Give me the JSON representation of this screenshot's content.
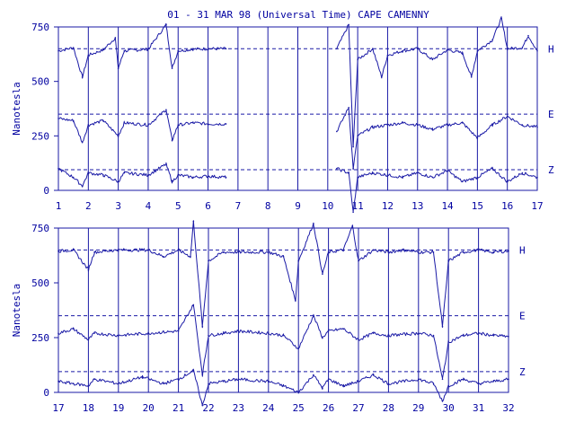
{
  "chart_data": {
    "type": "line",
    "title": "01 - 31 MAR 98 (Universal Time) CAPE CAMENNY",
    "ylabel": "Nanotesla",
    "line_color": "#1a1aa6",
    "panels": [
      {
        "x_start": 1,
        "x_end": 17,
        "x_ticks": [
          1,
          2,
          3,
          4,
          5,
          6,
          7,
          8,
          9,
          10,
          11,
          12,
          13,
          14,
          15,
          16,
          17
        ],
        "ylim": [
          0,
          750
        ],
        "y_ticks": [
          0,
          250,
          500,
          750
        ],
        "data_gaps": [
          [
            6.6,
            10.3
          ]
        ],
        "components": [
          {
            "name": "H",
            "baseline": 650,
            "values": [
              [
                1,
                640
              ],
              [
                1.5,
                655
              ],
              [
                1.8,
                520
              ],
              [
                2,
                620
              ],
              [
                2.5,
                645
              ],
              [
                2.9,
                700
              ],
              [
                3,
                560
              ],
              [
                3.2,
                640
              ],
              [
                4,
                648
              ],
              [
                4.6,
                760
              ],
              [
                4.8,
                560
              ],
              [
                5,
                640
              ],
              [
                5.5,
                648
              ],
              [
                6,
                650
              ],
              [
                6.6,
                650
              ],
              [
                10.3,
                650
              ],
              [
                10.7,
                760
              ],
              [
                10.85,
                200
              ],
              [
                11,
                600
              ],
              [
                11.5,
                650
              ],
              [
                11.8,
                520
              ],
              [
                12,
                620
              ],
              [
                12.5,
                640
              ],
              [
                13,
                650
              ],
              [
                13.5,
                600
              ],
              [
                14,
                645
              ],
              [
                14.5,
                630
              ],
              [
                14.8,
                520
              ],
              [
                15,
                640
              ],
              [
                15.5,
                690
              ],
              [
                15.8,
                790
              ],
              [
                16,
                650
              ],
              [
                16.5,
                655
              ],
              [
                16.7,
                710
              ],
              [
                17,
                640
              ]
            ]
          },
          {
            "name": "E",
            "baseline": 350,
            "values": [
              [
                1,
                330
              ],
              [
                1.5,
                320
              ],
              [
                1.8,
                220
              ],
              [
                2,
                300
              ],
              [
                2.5,
                320
              ],
              [
                3,
                250
              ],
              [
                3.2,
                310
              ],
              [
                4,
                300
              ],
              [
                4.6,
                370
              ],
              [
                4.8,
                230
              ],
              [
                5,
                300
              ],
              [
                5.5,
                310
              ],
              [
                6,
                305
              ],
              [
                6.6,
                305
              ],
              [
                10.3,
                270
              ],
              [
                10.7,
                380
              ],
              [
                10.85,
                100
              ],
              [
                11,
                250
              ],
              [
                11.5,
                290
              ],
              [
                12,
                300
              ],
              [
                12.5,
                310
              ],
              [
                13,
                300
              ],
              [
                13.5,
                280
              ],
              [
                14,
                300
              ],
              [
                14.5,
                310
              ],
              [
                15,
                240
              ],
              [
                15.5,
                300
              ],
              [
                16,
                340
              ],
              [
                16.5,
                300
              ],
              [
                17,
                290
              ]
            ]
          },
          {
            "name": "Z",
            "baseline": 95,
            "values": [
              [
                1,
                100
              ],
              [
                1.5,
                60
              ],
              [
                1.8,
                20
              ],
              [
                2,
                80
              ],
              [
                2.5,
                70
              ],
              [
                3,
                40
              ],
              [
                3.2,
                80
              ],
              [
                4,
                70
              ],
              [
                4.6,
                120
              ],
              [
                4.8,
                40
              ],
              [
                5,
                70
              ],
              [
                5.5,
                60
              ],
              [
                6,
                65
              ],
              [
                6.6,
                60
              ],
              [
                10.3,
                100
              ],
              [
                10.7,
                80
              ],
              [
                10.85,
                -100
              ],
              [
                11,
                60
              ],
              [
                11.5,
                80
              ],
              [
                12,
                70
              ],
              [
                12.5,
                60
              ],
              [
                13,
                80
              ],
              [
                13.5,
                60
              ],
              [
                14,
                90
              ],
              [
                14.5,
                40
              ],
              [
                15,
                60
              ],
              [
                15.5,
                100
              ],
              [
                16,
                40
              ],
              [
                16.5,
                80
              ],
              [
                17,
                60
              ]
            ]
          }
        ]
      },
      {
        "x_start": 17,
        "x_end": 32,
        "x_ticks": [
          17,
          18,
          19,
          20,
          21,
          22,
          23,
          24,
          25,
          26,
          27,
          28,
          29,
          30,
          31,
          32
        ],
        "ylim": [
          0,
          750
        ],
        "y_ticks": [
          0,
          250,
          500,
          750
        ],
        "data_gaps": [],
        "components": [
          {
            "name": "H",
            "baseline": 650,
            "values": [
              [
                17,
                645
              ],
              [
                17.5,
                650
              ],
              [
                18,
                560
              ],
              [
                18.2,
                640
              ],
              [
                19,
                650
              ],
              [
                20,
                650
              ],
              [
                20.5,
                620
              ],
              [
                21,
                650
              ],
              [
                21.4,
                620
              ],
              [
                21.5,
                780
              ],
              [
                21.8,
                300
              ],
              [
                22,
                600
              ],
              [
                22.5,
                640
              ],
              [
                23,
                640
              ],
              [
                24,
                640
              ],
              [
                24.5,
                620
              ],
              [
                24.9,
                420
              ],
              [
                25,
                600
              ],
              [
                25.5,
                770
              ],
              [
                25.8,
                540
              ],
              [
                26,
                640
              ],
              [
                26.5,
                650
              ],
              [
                26.8,
                760
              ],
              [
                27,
                600
              ],
              [
                27.5,
                650
              ],
              [
                28,
                640
              ],
              [
                28.5,
                650
              ],
              [
                29,
                640
              ],
              [
                29.5,
                640
              ],
              [
                29.8,
                300
              ],
              [
                30,
                600
              ],
              [
                30.5,
                640
              ],
              [
                31,
                650
              ],
              [
                31.5,
                640
              ],
              [
                32,
                645
              ]
            ]
          },
          {
            "name": "E",
            "baseline": 350,
            "values": [
              [
                17,
                270
              ],
              [
                17.5,
                290
              ],
              [
                18,
                240
              ],
              [
                18.2,
                270
              ],
              [
                19,
                260
              ],
              [
                20,
                270
              ],
              [
                21,
                280
              ],
              [
                21.5,
                400
              ],
              [
                21.8,
                80
              ],
              [
                22,
                260
              ],
              [
                22.5,
                270
              ],
              [
                23,
                280
              ],
              [
                24,
                270
              ],
              [
                24.5,
                260
              ],
              [
                25,
                200
              ],
              [
                25.5,
                350
              ],
              [
                25.8,
                250
              ],
              [
                26,
                280
              ],
              [
                26.5,
                290
              ],
              [
                27,
                240
              ],
              [
                27.5,
                270
              ],
              [
                28,
                260
              ],
              [
                29,
                270
              ],
              [
                29.5,
                260
              ],
              [
                29.8,
                60
              ],
              [
                30,
                230
              ],
              [
                30.5,
                260
              ],
              [
                31,
                270
              ],
              [
                31.5,
                260
              ],
              [
                32,
                255
              ]
            ]
          },
          {
            "name": "Z",
            "baseline": 95,
            "values": [
              [
                17,
                50
              ],
              [
                17.5,
                40
              ],
              [
                18,
                30
              ],
              [
                18.2,
                60
              ],
              [
                19,
                40
              ],
              [
                19.8,
                70
              ],
              [
                20.5,
                40
              ],
              [
                21,
                60
              ],
              [
                21.5,
                100
              ],
              [
                21.8,
                -60
              ],
              [
                22,
                40
              ],
              [
                22.5,
                50
              ],
              [
                23,
                60
              ],
              [
                24,
                50
              ],
              [
                24.5,
                30
              ],
              [
                25,
                0
              ],
              [
                25.5,
                80
              ],
              [
                25.8,
                20
              ],
              [
                26,
                60
              ],
              [
                26.5,
                30
              ],
              [
                27,
                50
              ],
              [
                27.5,
                80
              ],
              [
                28,
                40
              ],
              [
                29,
                60
              ],
              [
                29.5,
                40
              ],
              [
                29.8,
                -40
              ],
              [
                30,
                30
              ],
              [
                30.5,
                60
              ],
              [
                31,
                40
              ],
              [
                31.5,
                50
              ],
              [
                32,
                60
              ]
            ]
          }
        ]
      }
    ]
  }
}
